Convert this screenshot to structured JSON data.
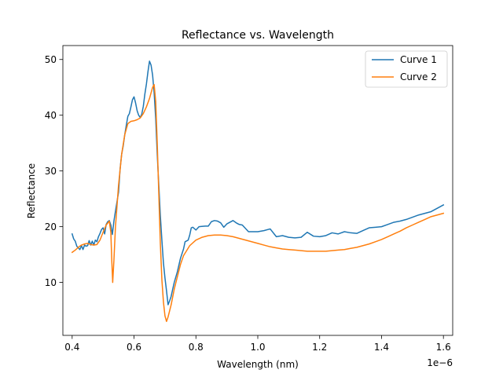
{
  "chart_data": {
    "type": "line",
    "title": "Reflectance vs. Wavelength",
    "xlabel": "Wavelength (nm)",
    "ylabel": "Reflectance",
    "x_offset_label": "1e−6",
    "xlim": [
      0.37,
      1.63
    ],
    "ylim": [
      0.5,
      52.5
    ],
    "xticks": [
      {
        "value": 0.4,
        "label": "0.4"
      },
      {
        "value": 0.6,
        "label": "0.6"
      },
      {
        "value": 0.8,
        "label": "0.8"
      },
      {
        "value": 1.0,
        "label": "1.0"
      },
      {
        "value": 1.2,
        "label": "1.2"
      },
      {
        "value": 1.4,
        "label": "1.4"
      },
      {
        "value": 1.6,
        "label": "1.6"
      }
    ],
    "yticks": [
      {
        "value": 10,
        "label": "10"
      },
      {
        "value": 20,
        "label": "20"
      },
      {
        "value": 30,
        "label": "30"
      },
      {
        "value": 40,
        "label": "40"
      },
      {
        "value": 50,
        "label": "50"
      }
    ],
    "grid": false,
    "legend_position": "top-right",
    "series": [
      {
        "name": "Curve 1",
        "color": "#1f77b4",
        "points": [
          [
            0.4,
            18.7
          ],
          [
            0.405,
            17.8
          ],
          [
            0.41,
            17.4
          ],
          [
            0.415,
            16.5
          ],
          [
            0.42,
            16.2
          ],
          [
            0.425,
            15.9
          ],
          [
            0.43,
            16.6
          ],
          [
            0.435,
            15.9
          ],
          [
            0.44,
            16.7
          ],
          [
            0.445,
            16.5
          ],
          [
            0.45,
            16.6
          ],
          [
            0.455,
            17.5
          ],
          [
            0.46,
            16.7
          ],
          [
            0.465,
            17.4
          ],
          [
            0.47,
            16.7
          ],
          [
            0.475,
            17.6
          ],
          [
            0.48,
            17.3
          ],
          [
            0.485,
            18.2
          ],
          [
            0.49,
            18.8
          ],
          [
            0.495,
            19.5
          ],
          [
            0.5,
            19.8
          ],
          [
            0.505,
            18.7
          ],
          [
            0.51,
            20.4
          ],
          [
            0.515,
            20.9
          ],
          [
            0.52,
            21.1
          ],
          [
            0.525,
            20.3
          ],
          [
            0.53,
            18.6
          ],
          [
            0.535,
            21.0
          ],
          [
            0.54,
            22.8
          ],
          [
            0.545,
            24.5
          ],
          [
            0.55,
            26.2
          ],
          [
            0.555,
            30.4
          ],
          [
            0.56,
            33.0
          ],
          [
            0.565,
            34.5
          ],
          [
            0.57,
            36.5
          ],
          [
            0.575,
            38.2
          ],
          [
            0.58,
            39.8
          ],
          [
            0.585,
            40.3
          ],
          [
            0.59,
            41.5
          ],
          [
            0.595,
            42.8
          ],
          [
            0.6,
            43.3
          ],
          [
            0.605,
            42.2
          ],
          [
            0.61,
            40.8
          ],
          [
            0.615,
            40.0
          ],
          [
            0.62,
            39.6
          ],
          [
            0.625,
            40.2
          ],
          [
            0.63,
            41.6
          ],
          [
            0.635,
            43.8
          ],
          [
            0.64,
            45.6
          ],
          [
            0.645,
            47.8
          ],
          [
            0.65,
            49.7
          ],
          [
            0.655,
            49.0
          ],
          [
            0.66,
            47.2
          ],
          [
            0.665,
            44.0
          ],
          [
            0.67,
            39.4
          ],
          [
            0.675,
            33.0
          ],
          [
            0.68,
            27.5
          ],
          [
            0.685,
            22.0
          ],
          [
            0.69,
            17.6
          ],
          [
            0.695,
            13.5
          ],
          [
            0.7,
            10.8
          ],
          [
            0.705,
            8.5
          ],
          [
            0.71,
            6.0
          ],
          [
            0.715,
            6.7
          ],
          [
            0.72,
            7.5
          ],
          [
            0.725,
            8.8
          ],
          [
            0.73,
            10.0
          ],
          [
            0.74,
            11.9
          ],
          [
            0.75,
            14.3
          ],
          [
            0.76,
            16.0
          ],
          [
            0.765,
            17.3
          ],
          [
            0.775,
            17.6
          ],
          [
            0.78,
            18.5
          ],
          [
            0.785,
            19.8
          ],
          [
            0.79,
            19.9
          ],
          [
            0.8,
            19.4
          ],
          [
            0.81,
            20.0
          ],
          [
            0.83,
            20.1
          ],
          [
            0.84,
            20.1
          ],
          [
            0.85,
            20.9
          ],
          [
            0.86,
            21.1
          ],
          [
            0.87,
            21.0
          ],
          [
            0.88,
            20.7
          ],
          [
            0.89,
            19.9
          ],
          [
            0.9,
            20.5
          ],
          [
            0.91,
            20.8
          ],
          [
            0.92,
            21.1
          ],
          [
            0.93,
            20.7
          ],
          [
            0.94,
            20.4
          ],
          [
            0.95,
            20.3
          ],
          [
            0.96,
            19.7
          ],
          [
            0.97,
            19.1
          ],
          [
            0.98,
            19.1
          ],
          [
            1.0,
            19.1
          ],
          [
            1.02,
            19.3
          ],
          [
            1.04,
            19.6
          ],
          [
            1.06,
            18.2
          ],
          [
            1.08,
            18.4
          ],
          [
            1.1,
            18.1
          ],
          [
            1.12,
            18.0
          ],
          [
            1.14,
            18.1
          ],
          [
            1.16,
            19.0
          ],
          [
            1.18,
            18.3
          ],
          [
            1.2,
            18.2
          ],
          [
            1.22,
            18.4
          ],
          [
            1.24,
            18.9
          ],
          [
            1.26,
            18.7
          ],
          [
            1.28,
            19.1
          ],
          [
            1.3,
            18.9
          ],
          [
            1.32,
            18.8
          ],
          [
            1.34,
            19.3
          ],
          [
            1.36,
            19.8
          ],
          [
            1.38,
            19.9
          ],
          [
            1.4,
            20.0
          ],
          [
            1.42,
            20.4
          ],
          [
            1.44,
            20.8
          ],
          [
            1.46,
            21.0
          ],
          [
            1.48,
            21.3
          ],
          [
            1.5,
            21.7
          ],
          [
            1.52,
            22.1
          ],
          [
            1.54,
            22.4
          ],
          [
            1.56,
            22.7
          ],
          [
            1.58,
            23.3
          ],
          [
            1.6,
            23.9
          ]
        ]
      },
      {
        "name": "Curve 2",
        "color": "#ff7f0e",
        "points": [
          [
            0.4,
            15.4
          ],
          [
            0.41,
            15.8
          ],
          [
            0.42,
            16.3
          ],
          [
            0.43,
            16.7
          ],
          [
            0.44,
            16.9
          ],
          [
            0.45,
            17.0
          ],
          [
            0.46,
            16.8
          ],
          [
            0.47,
            16.7
          ],
          [
            0.48,
            16.8
          ],
          [
            0.49,
            17.6
          ],
          [
            0.5,
            19.0
          ],
          [
            0.51,
            20.3
          ],
          [
            0.52,
            21.0
          ],
          [
            0.525,
            19.0
          ],
          [
            0.528,
            14.0
          ],
          [
            0.531,
            10.0
          ],
          [
            0.535,
            14.0
          ],
          [
            0.54,
            20.0
          ],
          [
            0.55,
            27.5
          ],
          [
            0.56,
            33.0
          ],
          [
            0.57,
            36.5
          ],
          [
            0.58,
            38.5
          ],
          [
            0.59,
            38.9
          ],
          [
            0.6,
            39.0
          ],
          [
            0.61,
            39.2
          ],
          [
            0.62,
            39.5
          ],
          [
            0.63,
            40.3
          ],
          [
            0.64,
            41.5
          ],
          [
            0.65,
            43.0
          ],
          [
            0.66,
            45.0
          ],
          [
            0.665,
            45.5
          ],
          [
            0.67,
            42.5
          ],
          [
            0.675,
            35.0
          ],
          [
            0.68,
            26.0
          ],
          [
            0.685,
            17.0
          ],
          [
            0.69,
            10.5
          ],
          [
            0.695,
            6.5
          ],
          [
            0.7,
            4.0
          ],
          [
            0.705,
            3.0
          ],
          [
            0.71,
            3.8
          ],
          [
            0.72,
            6.0
          ],
          [
            0.73,
            8.8
          ],
          [
            0.74,
            11.0
          ],
          [
            0.75,
            13.2
          ],
          [
            0.76,
            14.8
          ],
          [
            0.78,
            16.6
          ],
          [
            0.8,
            17.6
          ],
          [
            0.82,
            18.1
          ],
          [
            0.84,
            18.4
          ],
          [
            0.86,
            18.5
          ],
          [
            0.88,
            18.5
          ],
          [
            0.9,
            18.4
          ],
          [
            0.92,
            18.2
          ],
          [
            0.94,
            17.9
          ],
          [
            0.96,
            17.6
          ],
          [
            0.98,
            17.3
          ],
          [
            1.0,
            17.0
          ],
          [
            1.02,
            16.7
          ],
          [
            1.04,
            16.4
          ],
          [
            1.06,
            16.2
          ],
          [
            1.08,
            16.0
          ],
          [
            1.1,
            15.9
          ],
          [
            1.12,
            15.8
          ],
          [
            1.14,
            15.7
          ],
          [
            1.16,
            15.6
          ],
          [
            1.18,
            15.6
          ],
          [
            1.2,
            15.6
          ],
          [
            1.22,
            15.6
          ],
          [
            1.24,
            15.7
          ],
          [
            1.26,
            15.8
          ],
          [
            1.28,
            15.9
          ],
          [
            1.3,
            16.1
          ],
          [
            1.32,
            16.3
          ],
          [
            1.34,
            16.6
          ],
          [
            1.36,
            16.9
          ],
          [
            1.38,
            17.3
          ],
          [
            1.4,
            17.7
          ],
          [
            1.42,
            18.2
          ],
          [
            1.44,
            18.7
          ],
          [
            1.46,
            19.2
          ],
          [
            1.48,
            19.8
          ],
          [
            1.5,
            20.3
          ],
          [
            1.52,
            20.8
          ],
          [
            1.54,
            21.3
          ],
          [
            1.56,
            21.8
          ],
          [
            1.58,
            22.1
          ],
          [
            1.6,
            22.4
          ]
        ]
      }
    ]
  }
}
